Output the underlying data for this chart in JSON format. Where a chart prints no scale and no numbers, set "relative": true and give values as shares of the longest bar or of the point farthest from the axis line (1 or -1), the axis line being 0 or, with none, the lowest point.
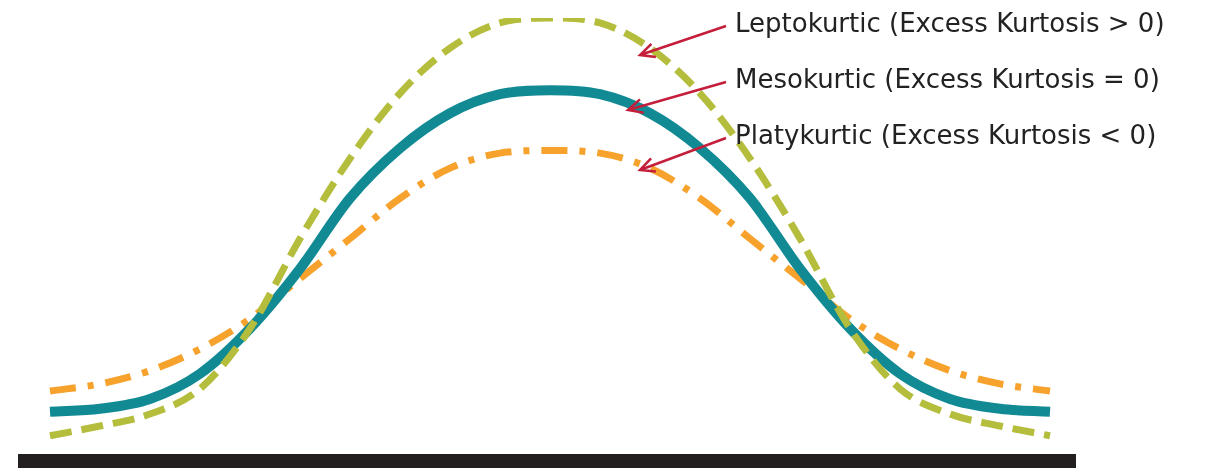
{
  "chart_data": {
    "type": "line",
    "relative": true,
    "categories": [
      null,
      null,
      null,
      null,
      null,
      null,
      null,
      null,
      null,
      null,
      null,
      null,
      null,
      null,
      null,
      null,
      null,
      null,
      null,
      null,
      null
    ],
    "series": [
      {
        "name": "Leptokurtic (Excess Kurtosis > 0)",
        "color": "#b5bd3c",
        "line_style": "dashed",
        "values": [
          0.057,
          0.079,
          0.106,
          0.163,
          0.299,
          0.502,
          0.683,
          0.83,
          0.932,
          0.989,
          1,
          0.989,
          0.932,
          0.83,
          0.683,
          0.502,
          0.299,
          0.163,
          0.106,
          0.079,
          0.057
        ]
      },
      {
        "name": "Mesokurtic (Excess Kurtosis = 0)",
        "color": "#118a94",
        "line_style": "solid",
        "values": [
          0.111,
          0.118,
          0.14,
          0.197,
          0.299,
          0.434,
          0.593,
          0.706,
          0.785,
          0.828,
          0.837,
          0.828,
          0.785,
          0.706,
          0.593,
          0.434,
          0.299,
          0.197,
          0.14,
          0.118,
          0.111
        ]
      },
      {
        "name": "Platykurtic (Excess Kurtosis < 0)",
        "color": "#f7a22d",
        "line_style": "dashdot",
        "values": [
          0.158,
          0.174,
          0.204,
          0.253,
          0.321,
          0.412,
          0.502,
          0.593,
          0.661,
          0.695,
          0.701,
          0.695,
          0.661,
          0.593,
          0.502,
          0.412,
          0.321,
          0.253,
          0.204,
          0.174,
          0.158
        ]
      }
    ],
    "marker": "none"
  }
}
